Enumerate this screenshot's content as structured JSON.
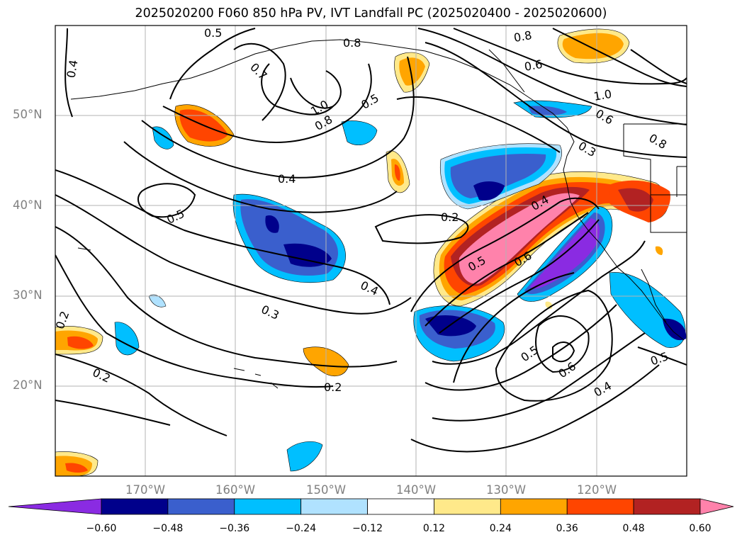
{
  "title": "2025020200 F060 850 hPa PV, IVT Landfall PC (2025020400 - 2025020600)",
  "axes": {
    "lon_ticks": [
      "170°W",
      "160°W",
      "150°W",
      "140°W",
      "130°W",
      "120°W"
    ],
    "lat_ticks": [
      "50°N",
      "40°N",
      "30°N",
      "20°N"
    ],
    "lon_range": [
      -180,
      -110
    ],
    "lat_range": [
      10,
      60
    ],
    "grid": true
  },
  "colorbar": {
    "ticks": [
      "−0.60",
      "−0.48",
      "−0.36",
      "−0.24",
      "−0.12",
      "0.12",
      "0.24",
      "0.36",
      "0.48",
      "0.60"
    ],
    "levels": [
      -0.6,
      -0.48,
      -0.36,
      -0.24,
      -0.12,
      0.12,
      0.24,
      0.36,
      0.48,
      0.6
    ],
    "colors": [
      "#8a2be2",
      "#00008b",
      "#3a5fcd",
      "#00bfff",
      "#b0e2ff",
      "#ffffff",
      "#ffe98a",
      "#ffa500",
      "#ff4500",
      "#b22222",
      "#ff82ab"
    ],
    "extend": "both"
  },
  "contour_labels": [
    "0.4",
    "0.7",
    "0.8",
    "0.5",
    "1.0",
    "0.8",
    "0.5",
    "0.8",
    "0.6",
    "1.0",
    "0.6",
    "0.8",
    "0.3",
    "0.4",
    "0.5",
    "0.2",
    "0.4",
    "0.5",
    "0.6",
    "0.4",
    "0.3",
    "0.2",
    "0.2",
    "0.2",
    "0.5",
    "0.6",
    "0.4",
    "0.5"
  ]
}
